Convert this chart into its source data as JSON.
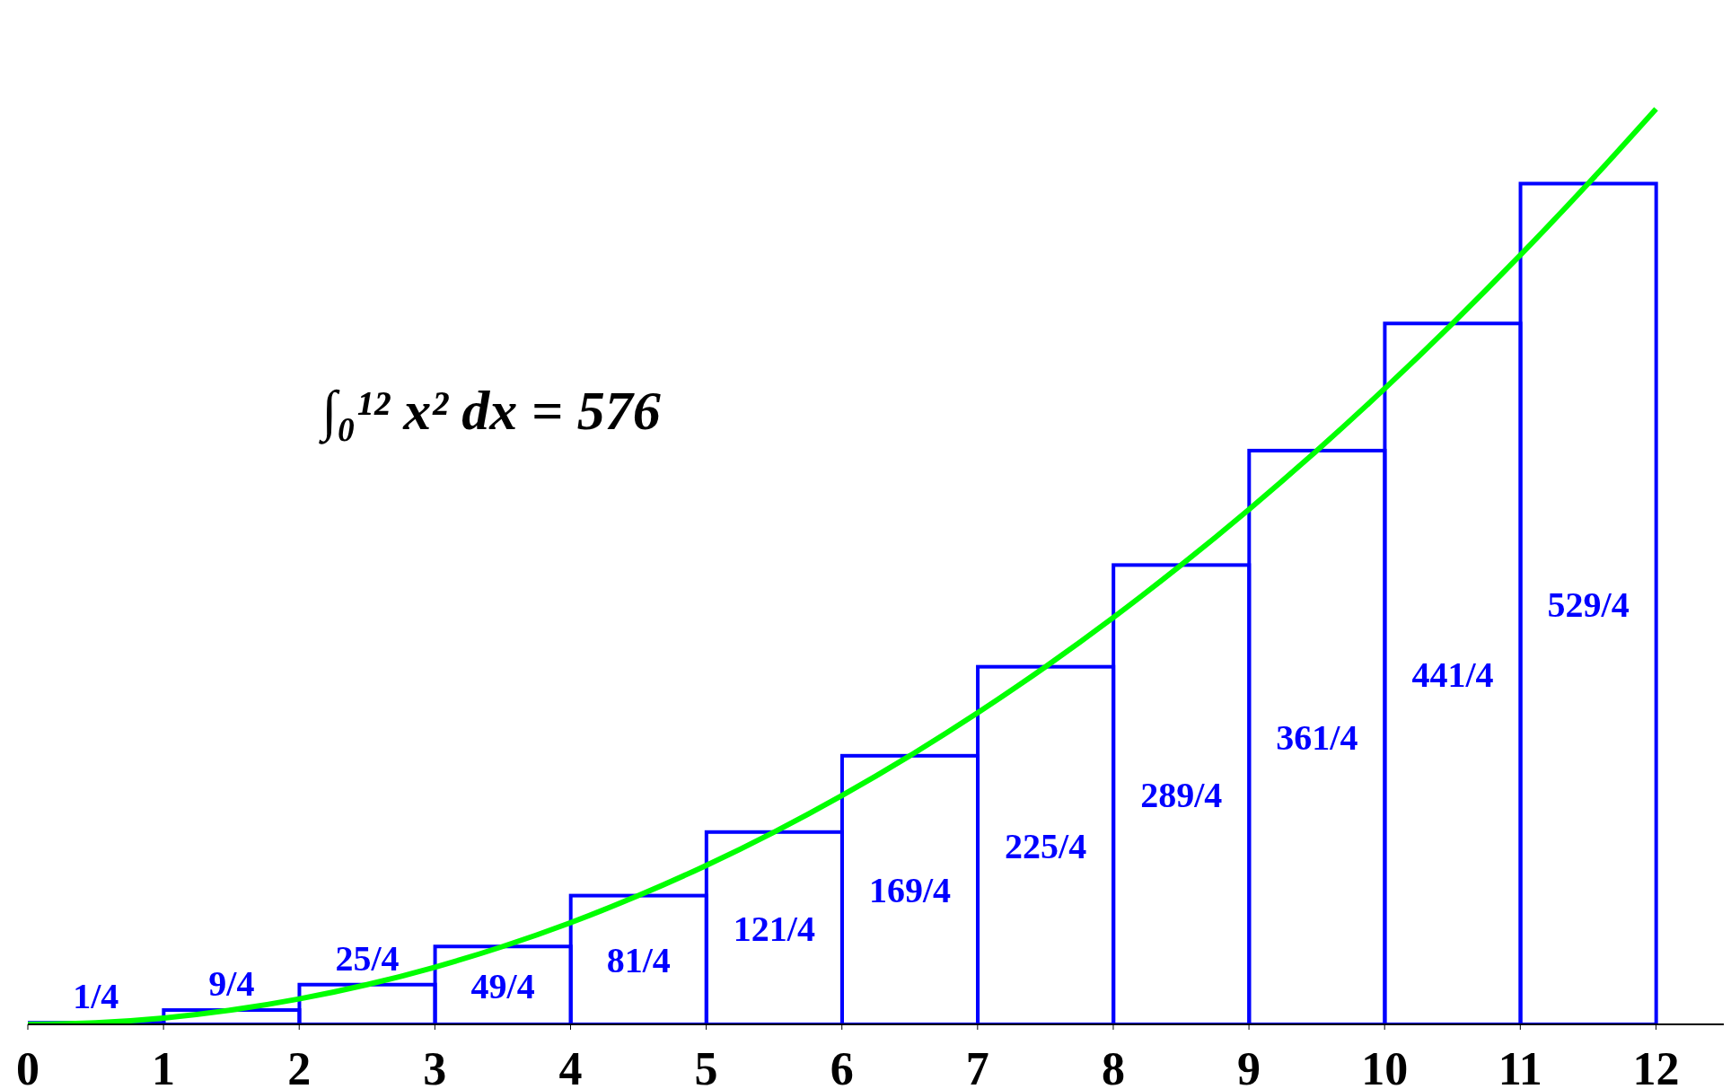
{
  "chart_data": {
    "type": "bar",
    "x": [
      0.5,
      1.5,
      2.5,
      3.5,
      4.5,
      5.5,
      6.5,
      7.5,
      8.5,
      9.5,
      10.5,
      11.5
    ],
    "xlim": [
      0,
      12.5
    ],
    "xticks": [
      0,
      1,
      2,
      3,
      4,
      5,
      6,
      7,
      8,
      9,
      10,
      11,
      12
    ],
    "tick_labels": "x",
    "grid": false,
    "legend": false,
    "annotations": [
      "∫₀¹² x² dx = 576"
    ],
    "series": [
      {
        "color": "#0000ff",
        "values": [
          0.25,
          2.25,
          6.25,
          12.25,
          20.25,
          30.25,
          42.25,
          56.25,
          72.25,
          90.25,
          110.25,
          132.25
        ],
        "value_labels": [
          "1/4",
          "9/4",
          "25/4",
          "49/4",
          "81/4",
          "121/4",
          "169/4",
          "225/4",
          "289/4",
          "361/4",
          "441/4",
          "529/4"
        ]
      },
      {
        "type": "line",
        "color": "#00ff00",
        "x": [
          0,
          0.5,
          1,
          1.5,
          2,
          2.5,
          3,
          3.5,
          4,
          4.5,
          5,
          5.5,
          6,
          6.5,
          7,
          7.5,
          8,
          8.5,
          9,
          9.5,
          10,
          10.5,
          11,
          11.5,
          12
        ],
        "values": [
          0,
          0.25,
          1,
          2.25,
          4,
          6.25,
          9,
          12.25,
          16,
          20.25,
          25,
          30.25,
          36,
          42.25,
          49,
          56.25,
          64,
          72.25,
          81,
          90.25,
          100,
          110.25,
          121,
          132.25,
          144
        ]
      }
    ]
  }
}
